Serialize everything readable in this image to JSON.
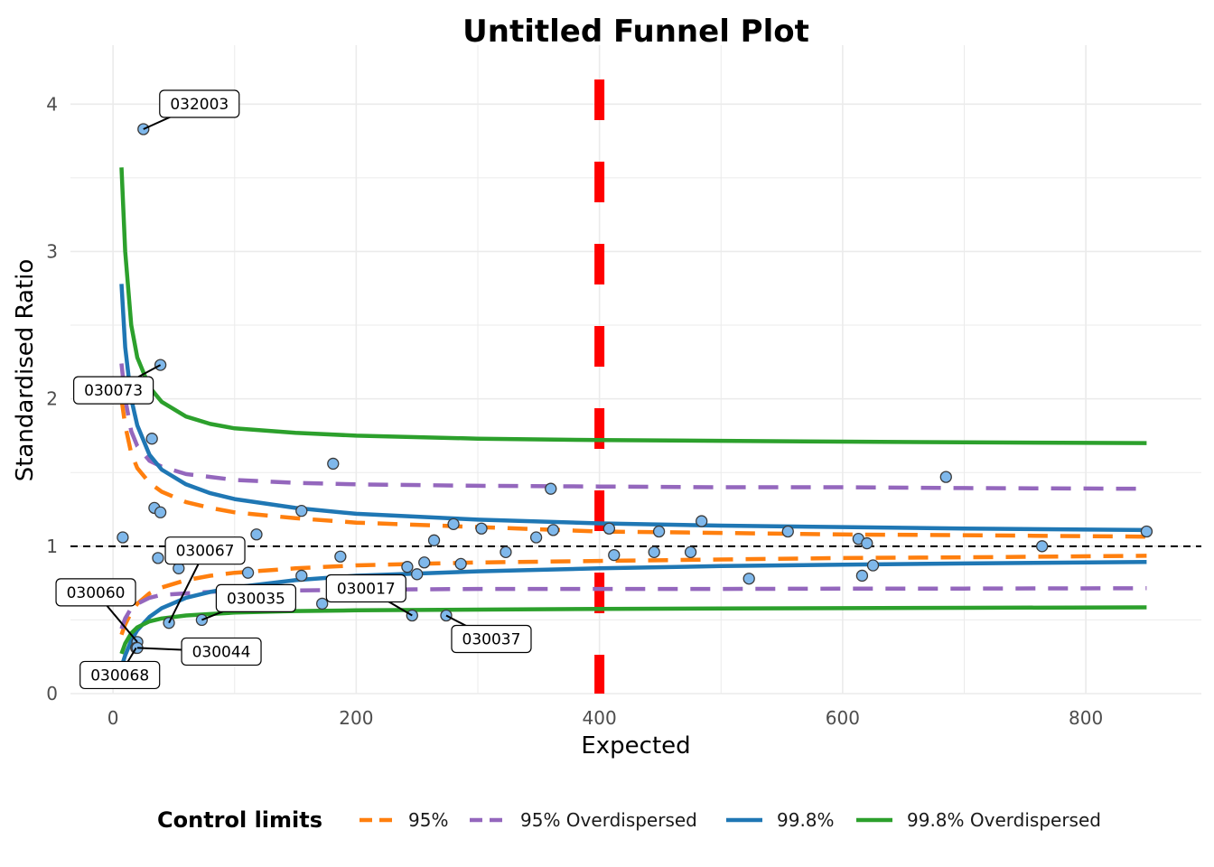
{
  "chart_data": {
    "type": "scatter",
    "title": "Untitled Funnel Plot",
    "xlabel": "Expected",
    "ylabel": "Standardised Ratio",
    "xlim": [
      -35,
      895
    ],
    "ylim": [
      0,
      4.4
    ],
    "x_ticks": [
      0,
      200,
      400,
      600,
      800
    ],
    "y_ticks": [
      0,
      1,
      2,
      3,
      4
    ],
    "grid": true,
    "target_line": {
      "y": 1,
      "style": "dashed",
      "color": "#000000"
    },
    "vertical_line": {
      "x": 400,
      "style": "dashed",
      "color": "#ff0000"
    },
    "legend": {
      "title": "Control limits",
      "position": "bottom",
      "entries": [
        {
          "label": "95%",
          "color": "#ff7f0e",
          "style": "dashed"
        },
        {
          "label": "95% Overdispersed",
          "color": "#9467bd",
          "style": "dashed"
        },
        {
          "label": "99.8%",
          "color": "#1f77b4",
          "style": "solid"
        },
        {
          "label": "99.8% Overdispersed",
          "color": "#2ca02c",
          "style": "solid"
        }
      ]
    },
    "limits": [
      {
        "name": "95%",
        "color": "#ff7f0e",
        "style": "dashed",
        "x": [
          7,
          10,
          15,
          20,
          30,
          40,
          60,
          80,
          100,
          150,
          200,
          300,
          400,
          500,
          600,
          700,
          850
        ],
        "upper": [
          2.0,
          1.82,
          1.63,
          1.53,
          1.43,
          1.37,
          1.3,
          1.26,
          1.23,
          1.19,
          1.16,
          1.13,
          1.1,
          1.09,
          1.08,
          1.075,
          1.065
        ],
        "lower": [
          0.4,
          0.47,
          0.55,
          0.61,
          0.68,
          0.72,
          0.77,
          0.8,
          0.82,
          0.85,
          0.87,
          0.89,
          0.9,
          0.91,
          0.92,
          0.925,
          0.935
        ]
      },
      {
        "name": "95% Overdispersed",
        "color": "#9467bd",
        "style": "dashed",
        "x": [
          7,
          10,
          15,
          20,
          30,
          40,
          60,
          80,
          100,
          150,
          200,
          300,
          400,
          500,
          600,
          700,
          850
        ],
        "upper": [
          2.24,
          2.0,
          1.78,
          1.68,
          1.58,
          1.54,
          1.49,
          1.47,
          1.45,
          1.43,
          1.42,
          1.41,
          1.405,
          1.4,
          1.4,
          1.395,
          1.39
        ],
        "lower": [
          0.44,
          0.51,
          0.58,
          0.61,
          0.65,
          0.67,
          0.68,
          0.69,
          0.7,
          0.7,
          0.705,
          0.71,
          0.71,
          0.71,
          0.712,
          0.713,
          0.715
        ]
      },
      {
        "name": "99.8%",
        "color": "#1f77b4",
        "style": "solid",
        "x": [
          7,
          10,
          15,
          20,
          30,
          40,
          60,
          80,
          100,
          150,
          200,
          300,
          400,
          500,
          600,
          700,
          850
        ],
        "upper": [
          2.78,
          2.35,
          2.0,
          1.82,
          1.62,
          1.52,
          1.42,
          1.36,
          1.32,
          1.26,
          1.22,
          1.18,
          1.155,
          1.14,
          1.13,
          1.12,
          1.11
        ],
        "lower": [
          0.18,
          0.26,
          0.36,
          0.43,
          0.52,
          0.58,
          0.65,
          0.69,
          0.72,
          0.77,
          0.8,
          0.83,
          0.85,
          0.865,
          0.875,
          0.883,
          0.893
        ]
      },
      {
        "name": "99.8% Overdispersed",
        "color": "#2ca02c",
        "style": "solid",
        "x": [
          7,
          10,
          15,
          20,
          30,
          40,
          60,
          80,
          100,
          150,
          200,
          300,
          400,
          500,
          600,
          700,
          850
        ],
        "upper": [
          3.57,
          3.0,
          2.5,
          2.28,
          2.08,
          1.98,
          1.88,
          1.83,
          1.8,
          1.77,
          1.75,
          1.73,
          1.72,
          1.715,
          1.71,
          1.705,
          1.7
        ],
        "lower": [
          0.27,
          0.34,
          0.41,
          0.45,
          0.49,
          0.51,
          0.53,
          0.54,
          0.55,
          0.56,
          0.565,
          0.57,
          0.575,
          0.578,
          0.58,
          0.582,
          0.585
        ]
      }
    ],
    "points": [
      {
        "x": 25,
        "y": 3.83,
        "label": "032003"
      },
      {
        "x": 39,
        "y": 2.23,
        "label": "030073"
      },
      {
        "x": 32,
        "y": 1.73
      },
      {
        "x": 34,
        "y": 1.26
      },
      {
        "x": 39,
        "y": 1.23
      },
      {
        "x": 8,
        "y": 1.06
      },
      {
        "x": 37,
        "y": 0.92
      },
      {
        "x": 54,
        "y": 0.85
      },
      {
        "x": 46,
        "y": 0.48,
        "label": "030067"
      },
      {
        "x": 20,
        "y": 0.35,
        "label": "030060"
      },
      {
        "x": 19,
        "y": 0.31,
        "label": "030068"
      },
      {
        "x": 20,
        "y": 0.31,
        "label": "030044"
      },
      {
        "x": 73,
        "y": 0.5,
        "label": "030035"
      },
      {
        "x": 111,
        "y": 0.82
      },
      {
        "x": 118,
        "y": 1.08
      },
      {
        "x": 155,
        "y": 1.24
      },
      {
        "x": 155,
        "y": 0.8
      },
      {
        "x": 172,
        "y": 0.61
      },
      {
        "x": 181,
        "y": 1.56
      },
      {
        "x": 187,
        "y": 0.93
      },
      {
        "x": 242,
        "y": 0.86
      },
      {
        "x": 246,
        "y": 0.53,
        "label": "030017"
      },
      {
        "x": 250,
        "y": 0.81
      },
      {
        "x": 256,
        "y": 0.89
      },
      {
        "x": 264,
        "y": 1.04
      },
      {
        "x": 274,
        "y": 0.53,
        "label": "030037"
      },
      {
        "x": 280,
        "y": 1.15
      },
      {
        "x": 286,
        "y": 0.88
      },
      {
        "x": 303,
        "y": 1.12
      },
      {
        "x": 323,
        "y": 0.96
      },
      {
        "x": 348,
        "y": 1.06
      },
      {
        "x": 360,
        "y": 1.39
      },
      {
        "x": 362,
        "y": 1.11
      },
      {
        "x": 408,
        "y": 1.12
      },
      {
        "x": 412,
        "y": 0.94
      },
      {
        "x": 445,
        "y": 0.96
      },
      {
        "x": 449,
        "y": 1.1
      },
      {
        "x": 475,
        "y": 0.96
      },
      {
        "x": 484,
        "y": 1.17
      },
      {
        "x": 523,
        "y": 0.78
      },
      {
        "x": 555,
        "y": 1.1
      },
      {
        "x": 613,
        "y": 1.05
      },
      {
        "x": 616,
        "y": 0.8
      },
      {
        "x": 620,
        "y": 1.02
      },
      {
        "x": 625,
        "y": 0.87
      },
      {
        "x": 685,
        "y": 1.47
      },
      {
        "x": 764,
        "y": 1.0
      },
      {
        "x": 850,
        "y": 1.1
      }
    ],
    "point_color": "#7fb8eb"
  }
}
